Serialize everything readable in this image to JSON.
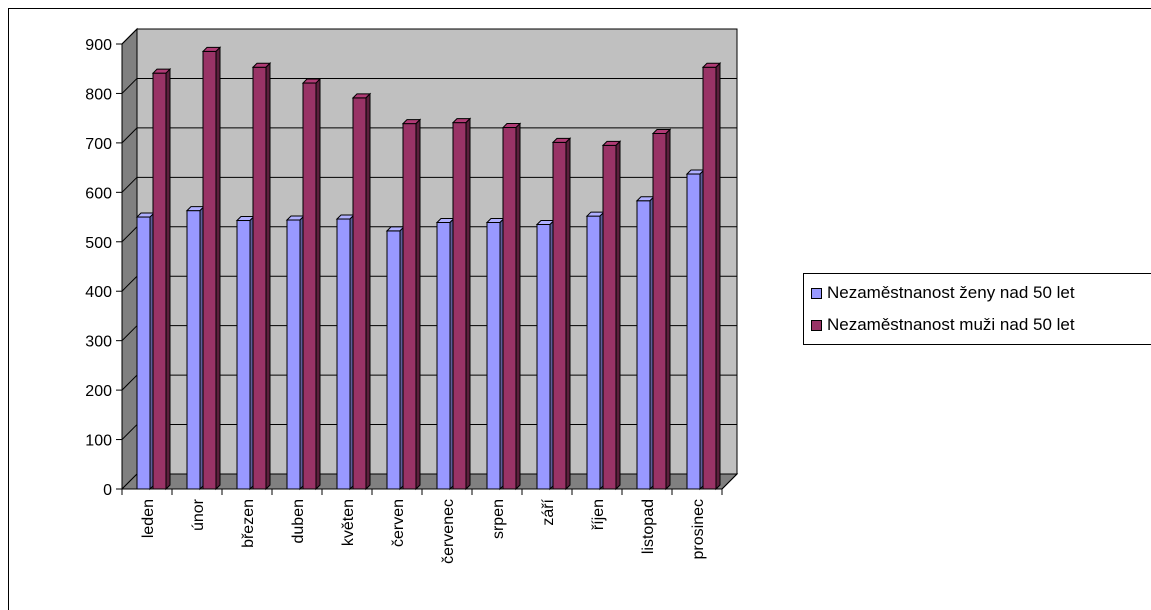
{
  "chart_data": {
    "type": "bar",
    "categories": [
      "leden",
      "únor",
      "březen",
      "duben",
      "květen",
      "červen",
      "červenec",
      "srpen",
      "září",
      "říjen",
      "listopad",
      "prosinec"
    ],
    "series": [
      {
        "name": "Nezaměstnanost ženy nad 50 let",
        "color": "#9999FF",
        "values": [
          550,
          563,
          543,
          544,
          546,
          522,
          539,
          539,
          535,
          552,
          583,
          637
        ]
      },
      {
        "name": "Nezaměstnanost muži nad 50 let",
        "color": "#993366",
        "values": [
          841,
          885,
          853,
          821,
          791,
          739,
          741,
          731,
          701,
          695,
          719,
          853
        ]
      }
    ],
    "title": "",
    "xlabel": "",
    "ylabel": "",
    "ylim": [
      0,
      900
    ],
    "yticks": [
      "0",
      "100",
      "200",
      "300",
      "400",
      "500",
      "600",
      "700",
      "800",
      "900"
    ],
    "grid": true,
    "legend_position": "right",
    "colors": {
      "wall": "#C0C0C0",
      "floor": "#808080"
    }
  }
}
